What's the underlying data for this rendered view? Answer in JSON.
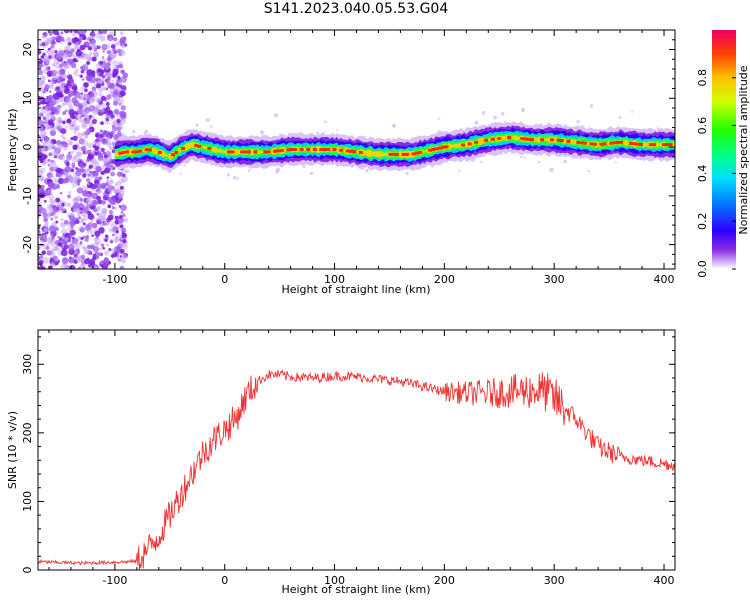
{
  "title": "S141.2023.040.05.53.G04",
  "chart_data": [
    {
      "type": "heatmap",
      "xlabel": "Height of straight line (km)",
      "ylabel": "Frequency (Hz)",
      "xlim": [
        -170,
        410
      ],
      "ylim": [
        -25,
        24
      ],
      "xticks": [
        -100,
        0,
        100,
        200,
        300,
        400
      ],
      "yticks": [
        -20,
        -10,
        0,
        10,
        20
      ],
      "colorbar": {
        "label": "Normalized spectral amplitude",
        "range": [
          0,
          1
        ],
        "ticks": [
          "0.0",
          "0.2",
          "0.4",
          "0.6",
          "0.8"
        ]
      },
      "ridge": {
        "x": [
          -100,
          -90,
          -80,
          -70,
          -60,
          -50,
          -40,
          -30,
          -20,
          -10,
          0,
          20,
          40,
          60,
          80,
          100,
          120,
          140,
          160,
          170,
          180,
          200,
          220,
          240,
          260,
          280,
          300,
          320,
          340,
          360,
          380,
          400,
          410
        ],
        "y": [
          -1.5,
          -1,
          -1,
          -0.5,
          -1,
          -2,
          -0.5,
          0.5,
          0,
          -0.5,
          -1,
          -1,
          -1,
          -0.5,
          -0.5,
          -0.5,
          -1,
          -1.5,
          -1.5,
          -1.5,
          -1,
          0,
          0.5,
          1.5,
          2,
          1.5,
          1.5,
          1,
          0.5,
          1,
          0.5,
          0.5,
          0.5
        ]
      },
      "noise_region_x": [
        -170,
        -100
      ]
    },
    {
      "type": "line",
      "xlabel": "Height of straight line (km)",
      "ylabel": "SNR (10 * v/v)",
      "xlim": [
        -170,
        410
      ],
      "ylim": [
        0,
        350
      ],
      "xticks": [
        -100,
        0,
        100,
        200,
        300,
        400
      ],
      "yticks": [
        0,
        100,
        200,
        300
      ],
      "series": [
        {
          "color": "#ee3333",
          "x": [
            -170,
            -150,
            -130,
            -110,
            -90,
            -80,
            -70,
            -60,
            -50,
            -40,
            -30,
            -20,
            -10,
            0,
            10,
            20,
            30,
            40,
            50,
            60,
            80,
            100,
            120,
            140,
            160,
            180,
            200,
            220,
            240,
            260,
            280,
            290,
            300,
            310,
            320,
            330,
            340,
            350,
            360,
            380,
            400,
            410
          ],
          "y": [
            12,
            11,
            10,
            11,
            12,
            13,
            30,
            50,
            80,
            110,
            140,
            170,
            190,
            205,
            220,
            255,
            275,
            285,
            285,
            282,
            280,
            283,
            282,
            278,
            275,
            268,
            260,
            258,
            258,
            260,
            262,
            262,
            250,
            235,
            220,
            200,
            180,
            172,
            165,
            160,
            155,
            152
          ]
        }
      ]
    }
  ]
}
